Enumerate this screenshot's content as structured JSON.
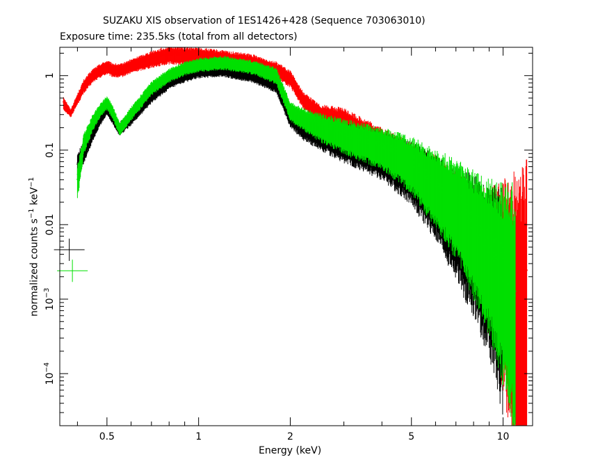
{
  "chart_data": {
    "type": "scatter",
    "title": "SUZAKU XIS observation of 1ES1426+428 (Sequence 703063010)",
    "subtitle": "Exposure time: 235.5ks (total from all detectors)",
    "xlabel": "Energy (keV)",
    "ylabel_base": "normalized counts s",
    "ylabel_mid": " keV",
    "ylabel_exp": "−1",
    "x_scale": "log",
    "y_scale": "log",
    "xlim": [
      0.35,
      12.5
    ],
    "ylim": [
      2e-05,
      2.4
    ],
    "x_ticks": [
      {
        "value": 0.5,
        "label": "0.5"
      },
      {
        "value": 1,
        "label": "1"
      },
      {
        "value": 2,
        "label": "2"
      },
      {
        "value": 5,
        "label": "5"
      },
      {
        "value": 10,
        "label": "10"
      }
    ],
    "y_ticks": [
      {
        "value": 1,
        "label": "1",
        "base": "",
        "exp": ""
      },
      {
        "value": 0.1,
        "label": "0.1",
        "base": "",
        "exp": ""
      },
      {
        "value": 0.01,
        "label": "0.01",
        "base": "",
        "exp": ""
      },
      {
        "value": 0.001,
        "label": "",
        "base": "10",
        "exp": "−3"
      },
      {
        "value": 0.0001,
        "label": "",
        "base": "10",
        "exp": "−4"
      }
    ],
    "grid": false,
    "series": [
      {
        "color": "#ff0000",
        "x": [
          0.36,
          0.38,
          0.4,
          0.42,
          0.45,
          0.48,
          0.5,
          0.52,
          0.55,
          0.6,
          0.7,
          0.8,
          0.9,
          1.0,
          1.2,
          1.5,
          1.8,
          2.0,
          2.2,
          2.5,
          3.0,
          4.0,
          5.0,
          6.0,
          7.0,
          8.0,
          9.0,
          10.0,
          11.0,
          12.0
        ],
        "y": [
          0.45,
          0.32,
          0.5,
          0.75,
          1.05,
          1.25,
          1.35,
          1.25,
          1.2,
          1.4,
          1.75,
          2.0,
          1.95,
          1.9,
          1.75,
          1.55,
          1.25,
          0.95,
          0.5,
          0.32,
          0.26,
          0.13,
          0.07,
          0.035,
          0.018,
          0.009,
          0.005,
          0.003,
          0.0015,
          0.0009
        ],
        "err": [
          0.1,
          0.06,
          0.08,
          0.1,
          0.1,
          0.1,
          0.1,
          0.1,
          0.1,
          0.1,
          0.12,
          0.13,
          0.13,
          0.13,
          0.13,
          0.13,
          0.12,
          0.12,
          0.12,
          0.15,
          0.2,
          0.25,
          0.35,
          0.5,
          0.6,
          0.8,
          1.0,
          1.5,
          2.0,
          2.5
        ]
      },
      {
        "color": "#000000",
        "x": [
          0.4,
          0.42,
          0.45,
          0.48,
          0.5,
          0.52,
          0.55,
          0.6,
          0.7,
          0.8,
          0.9,
          1.0,
          1.2,
          1.5,
          1.8,
          2.0,
          2.2,
          2.5,
          3.0,
          4.0,
          5.0,
          6.0,
          7.0,
          8.0,
          9.0,
          10.0
        ],
        "y": [
          0.065,
          0.1,
          0.18,
          0.3,
          0.38,
          0.3,
          0.2,
          0.28,
          0.55,
          0.85,
          1.05,
          1.2,
          1.25,
          1.05,
          0.8,
          0.3,
          0.22,
          0.18,
          0.14,
          0.1,
          0.06,
          0.03,
          0.015,
          0.008,
          0.004,
          0.002
        ],
        "err": [
          0.2,
          0.15,
          0.12,
          0.1,
          0.1,
          0.1,
          0.1,
          0.1,
          0.1,
          0.1,
          0.1,
          0.1,
          0.1,
          0.1,
          0.12,
          0.15,
          0.18,
          0.22,
          0.28,
          0.35,
          0.45,
          0.6,
          0.8,
          1.0,
          1.2,
          1.6
        ]
      },
      {
        "color": "#00e000",
        "x": [
          0.4,
          0.42,
          0.45,
          0.48,
          0.5,
          0.52,
          0.55,
          0.6,
          0.7,
          0.8,
          0.9,
          1.0,
          1.2,
          1.5,
          1.8,
          2.0,
          2.2,
          2.5,
          3.0,
          4.0,
          5.0,
          6.0,
          7.0,
          8.0,
          9.0,
          10.0,
          11.0
        ],
        "y": [
          0.04,
          0.13,
          0.25,
          0.38,
          0.45,
          0.35,
          0.2,
          0.32,
          0.7,
          1.05,
          1.3,
          1.45,
          1.55,
          1.35,
          1.05,
          0.35,
          0.28,
          0.22,
          0.17,
          0.12,
          0.075,
          0.04,
          0.022,
          0.011,
          0.006,
          0.003,
          0.0015
        ],
        "err": [
          0.25,
          0.15,
          0.12,
          0.1,
          0.1,
          0.1,
          0.1,
          0.1,
          0.1,
          0.1,
          0.1,
          0.1,
          0.1,
          0.1,
          0.12,
          0.14,
          0.16,
          0.2,
          0.25,
          0.3,
          0.4,
          0.55,
          0.7,
          0.9,
          1.1,
          1.4,
          1.8
        ]
      }
    ],
    "legend_markers": [
      {
        "color": "#000000",
        "x": 0.376,
        "y": 0.0046
      },
      {
        "color": "#00e000",
        "x": 0.385,
        "y": 0.0024
      }
    ]
  }
}
